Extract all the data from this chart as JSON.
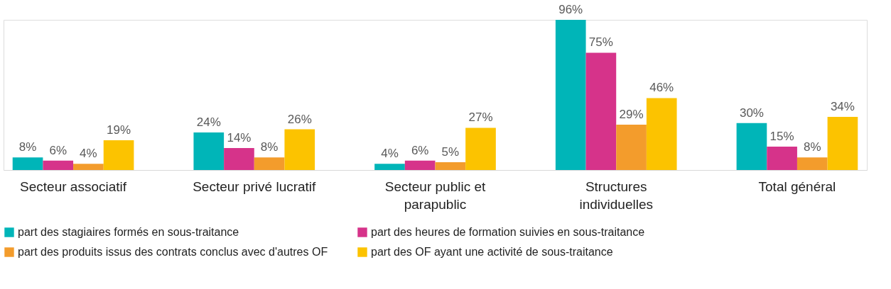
{
  "chart_data": {
    "type": "bar",
    "categories": [
      "Secteur associatif",
      "Secteur privé lucratif",
      "Secteur public et parapublic",
      "Structures individuelles",
      "Total général"
    ],
    "series": [
      {
        "name": "part des stagiaires formés en sous-traitance",
        "color": "#00b5b8",
        "values": [
          8,
          24,
          4,
          96,
          30
        ],
        "value_labels": [
          "8%",
          "24%",
          "4%",
          "96%",
          "30%"
        ]
      },
      {
        "name": "part des heures de formation suivies en sous-traitance",
        "color": "#d6338a",
        "values": [
          6,
          14,
          6,
          75,
          15
        ],
        "value_labels": [
          "6%",
          "14%",
          "6%",
          "75%",
          "15%"
        ]
      },
      {
        "name": "part des produits issus des contrats conclus avec d'autres OF",
        "color": "#f39c2c",
        "values": [
          4,
          8,
          5,
          29,
          8
        ],
        "value_labels": [
          "4%",
          "8%",
          "5%",
          "29%",
          "8%"
        ]
      },
      {
        "name": "part des OF ayant une activité de sous-traitance",
        "color": "#fcc300",
        "values": [
          19,
          26,
          27,
          46,
          34
        ],
        "value_labels": [
          "19%",
          "26%",
          "27%",
          "46%",
          "34%"
        ]
      }
    ],
    "legend": "bottom",
    "grid": false
  }
}
